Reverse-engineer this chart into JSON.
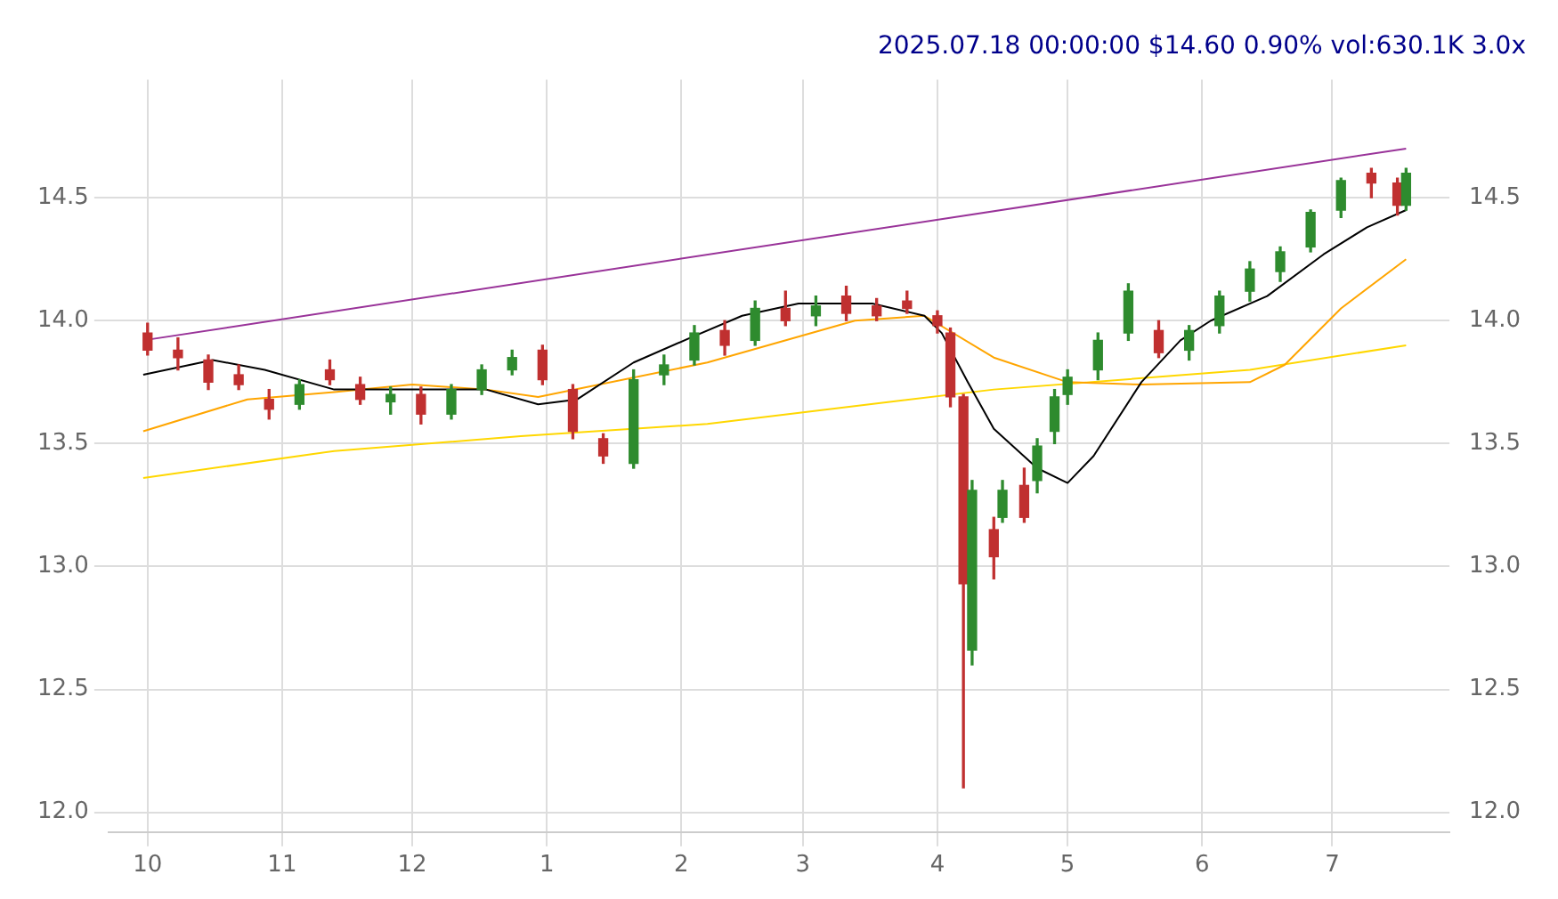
{
  "chart_data": {
    "type": "candlestick",
    "title": "2025.07.18 00:00:00 $14.60 0.90% vol:630.1K 3.0x",
    "x": [
      "2024-10-01",
      "2024-10-08",
      "2024-10-15",
      "2024-10-22",
      "2024-10-29",
      "2024-11-05",
      "2024-11-12",
      "2024-11-19",
      "2024-11-26",
      "2024-12-03",
      "2024-12-10",
      "2024-12-17",
      "2024-12-24",
      "2024-12-31",
      "2025-01-07",
      "2025-01-14",
      "2025-01-21",
      "2025-01-28",
      "2025-02-04",
      "2025-02-11",
      "2025-02-18",
      "2025-02-25",
      "2025-03-04",
      "2025-03-11",
      "2025-03-18",
      "2025-03-25",
      "2025-04-01",
      "2025-04-04",
      "2025-04-07",
      "2025-04-09",
      "2025-04-14",
      "2025-04-16",
      "2025-04-21",
      "2025-04-24",
      "2025-04-28",
      "2025-05-01",
      "2025-05-08",
      "2025-05-15",
      "2025-05-22",
      "2025-05-29",
      "2025-06-05",
      "2025-06-12",
      "2025-06-19",
      "2025-06-26",
      "2025-07-03",
      "2025-07-10",
      "2025-07-16",
      "2025-07-18"
    ],
    "ohlc": [
      [
        13.95,
        13.99,
        13.86,
        13.88
      ],
      [
        13.88,
        13.93,
        13.8,
        13.85
      ],
      [
        13.84,
        13.86,
        13.72,
        13.75
      ],
      [
        13.78,
        13.82,
        13.72,
        13.74
      ],
      [
        13.68,
        13.72,
        13.6,
        13.64
      ],
      [
        13.66,
        13.76,
        13.64,
        13.74
      ],
      [
        13.8,
        13.84,
        13.74,
        13.76
      ],
      [
        13.74,
        13.77,
        13.66,
        13.68
      ],
      [
        13.67,
        13.73,
        13.62,
        13.7
      ],
      [
        13.7,
        13.73,
        13.58,
        13.62
      ],
      [
        13.62,
        13.74,
        13.6,
        13.72
      ],
      [
        13.72,
        13.82,
        13.7,
        13.8
      ],
      [
        13.8,
        13.88,
        13.78,
        13.85
      ],
      [
        13.88,
        13.9,
        13.74,
        13.76
      ],
      [
        13.72,
        13.74,
        13.52,
        13.55
      ],
      [
        13.52,
        13.54,
        13.42,
        13.45
      ],
      [
        13.42,
        13.8,
        13.4,
        13.76
      ],
      [
        13.78,
        13.86,
        13.74,
        13.82
      ],
      [
        13.84,
        13.98,
        13.82,
        13.95
      ],
      [
        13.96,
        14.0,
        13.86,
        13.9
      ],
      [
        13.92,
        14.08,
        13.9,
        14.05
      ],
      [
        14.05,
        14.12,
        13.98,
        14.0
      ],
      [
        14.02,
        14.1,
        13.98,
        14.06
      ],
      [
        14.1,
        14.14,
        14.0,
        14.03
      ],
      [
        14.06,
        14.09,
        14.0,
        14.02
      ],
      [
        14.08,
        14.12,
        14.03,
        14.05
      ],
      [
        14.02,
        14.04,
        13.95,
        13.98
      ],
      [
        13.95,
        13.97,
        13.65,
        13.69
      ],
      [
        13.69,
        13.7,
        12.1,
        12.93
      ],
      [
        12.66,
        13.35,
        12.6,
        13.31
      ],
      [
        13.15,
        13.2,
        12.95,
        13.04
      ],
      [
        13.2,
        13.35,
        13.18,
        13.31
      ],
      [
        13.33,
        13.4,
        13.18,
        13.2
      ],
      [
        13.35,
        13.52,
        13.3,
        13.49
      ],
      [
        13.55,
        13.72,
        13.5,
        13.69
      ],
      [
        13.7,
        13.8,
        13.66,
        13.77
      ],
      [
        13.8,
        13.95,
        13.76,
        13.92
      ],
      [
        13.95,
        14.15,
        13.92,
        14.12
      ],
      [
        13.96,
        14.0,
        13.85,
        13.87
      ],
      [
        13.88,
        13.98,
        13.84,
        13.96
      ],
      [
        13.98,
        14.12,
        13.95,
        14.1
      ],
      [
        14.12,
        14.24,
        14.08,
        14.21
      ],
      [
        14.2,
        14.3,
        14.16,
        14.28
      ],
      [
        14.3,
        14.45,
        14.28,
        14.44
      ],
      [
        14.45,
        14.58,
        14.42,
        14.57
      ],
      [
        14.6,
        14.62,
        14.5,
        14.56
      ],
      [
        14.56,
        14.58,
        14.43,
        14.47
      ],
      [
        14.47,
        14.62,
        14.45,
        14.6
      ]
    ],
    "colors": [
      "#c03030",
      "#c03030",
      "#c03030",
      "#c03030",
      "#c03030",
      "#2e8b2e",
      "#c03030",
      "#c03030",
      "#2e8b2e",
      "#c03030",
      "#2e8b2e",
      "#2e8b2e",
      "#2e8b2e",
      "#c03030",
      "#c03030",
      "#c03030",
      "#2e8b2e",
      "#2e8b2e",
      "#2e8b2e",
      "#c03030",
      "#2e8b2e",
      "#c03030",
      "#2e8b2e",
      "#c03030",
      "#c03030",
      "#c03030",
      "#c03030",
      "#c03030",
      "#c03030",
      "#2e8b2e",
      "#c03030",
      "#2e8b2e",
      "#c03030",
      "#2e8b2e",
      "#2e8b2e",
      "#2e8b2e",
      "#2e8b2e",
      "#2e8b2e",
      "#c03030",
      "#2e8b2e",
      "#2e8b2e",
      "#2e8b2e",
      "#2e8b2e",
      "#2e8b2e",
      "#2e8b2e",
      "#c03030",
      "#c03030",
      "#2e8b2e"
    ],
    "series": [
      {
        "type": "line",
        "color": "#000000",
        "x": [
          "2024-09-30",
          "2024-10-16",
          "2024-10-28",
          "2024-11-13",
          "2024-12-01",
          "2024-12-18",
          "2024-12-30",
          "2025-01-08",
          "2025-01-21",
          "2025-02-03",
          "2025-02-15",
          "2025-02-28",
          "2025-03-17",
          "2025-03-29",
          "2025-04-02",
          "2025-04-08",
          "2025-04-14",
          "2025-04-24",
          "2025-05-01",
          "2025-05-07",
          "2025-05-18",
          "2025-05-27",
          "2025-06-03",
          "2025-06-16",
          "2025-06-29",
          "2025-07-09",
          "2025-07-18"
        ],
        "values": [
          13.78,
          13.84,
          13.8,
          13.72,
          13.72,
          13.72,
          13.66,
          13.68,
          13.83,
          13.93,
          14.02,
          14.07,
          14.07,
          14.02,
          13.95,
          13.75,
          13.56,
          13.4,
          13.34,
          13.45,
          13.75,
          13.92,
          14.0,
          14.1,
          14.27,
          14.38,
          14.45
        ]
      },
      {
        "type": "line",
        "color": "#ffa500",
        "x": [
          "2024-09-30",
          "2024-10-24",
          "2024-11-13",
          "2024-12-01",
          "2024-12-18",
          "2024-12-30",
          "2025-02-07",
          "2025-03-13",
          "2025-03-29",
          "2025-04-14",
          "2025-05-01",
          "2025-05-18",
          "2025-06-12",
          "2025-06-20",
          "2025-07-03",
          "2025-07-18"
        ],
        "values": [
          13.55,
          13.68,
          13.71,
          13.74,
          13.72,
          13.69,
          13.83,
          14.0,
          14.02,
          13.85,
          13.75,
          13.74,
          13.75,
          13.82,
          14.05,
          14.25
        ]
      },
      {
        "type": "line",
        "color": "#ffd700",
        "x": [
          "2024-09-30",
          "2024-11-13",
          "2024-12-26",
          "2025-02-07",
          "2025-03-21",
          "2025-04-14",
          "2025-06-12",
          "2025-07-18"
        ],
        "values": [
          13.36,
          13.47,
          13.53,
          13.58,
          13.67,
          13.72,
          13.8,
          13.9
        ]
      },
      {
        "type": "line",
        "color": "#993399",
        "x": [
          "2024-09-30",
          "2025-07-18"
        ],
        "values": [
          13.92,
          14.7
        ]
      }
    ],
    "xlim": [
      "2024-09-22",
      "2025-07-28"
    ],
    "xticks": [
      {
        "value": "2024-10-01",
        "label": "10"
      },
      {
        "value": "2024-11-01",
        "label": "11"
      },
      {
        "value": "2024-12-01",
        "label": "12"
      },
      {
        "value": "2025-01-01",
        "label": "1"
      },
      {
        "value": "2025-02-01",
        "label": "2"
      },
      {
        "value": "2025-03-01",
        "label": "3"
      },
      {
        "value": "2025-04-01",
        "label": "4"
      },
      {
        "value": "2025-05-01",
        "label": "5"
      },
      {
        "value": "2025-06-01",
        "label": "6"
      },
      {
        "value": "2025-07-01",
        "label": "7"
      }
    ],
    "ylim": [
      11.92,
      14.98
    ],
    "yticks": [
      {
        "value": 12,
        "label": "12.0"
      },
      {
        "value": 12.5,
        "label": "12.5"
      },
      {
        "value": 13,
        "label": "13.0"
      },
      {
        "value": 13.5,
        "label": "13.5"
      },
      {
        "value": 14,
        "label": "14.0"
      },
      {
        "value": 14.5,
        "label": "14.5"
      }
    ],
    "y2lim": [
      11.92,
      14.98
    ],
    "y2ticks": [
      {
        "value": 12,
        "label": "12.0"
      },
      {
        "value": 12.5,
        "label": "12.5"
      },
      {
        "value": 13,
        "label": "13.0"
      },
      {
        "value": 13.5,
        "label": "13.5"
      },
      {
        "value": 14,
        "label": "14.0"
      },
      {
        "value": 14.5,
        "label": "14.5"
      }
    ],
    "grid": true,
    "legend": false
  }
}
